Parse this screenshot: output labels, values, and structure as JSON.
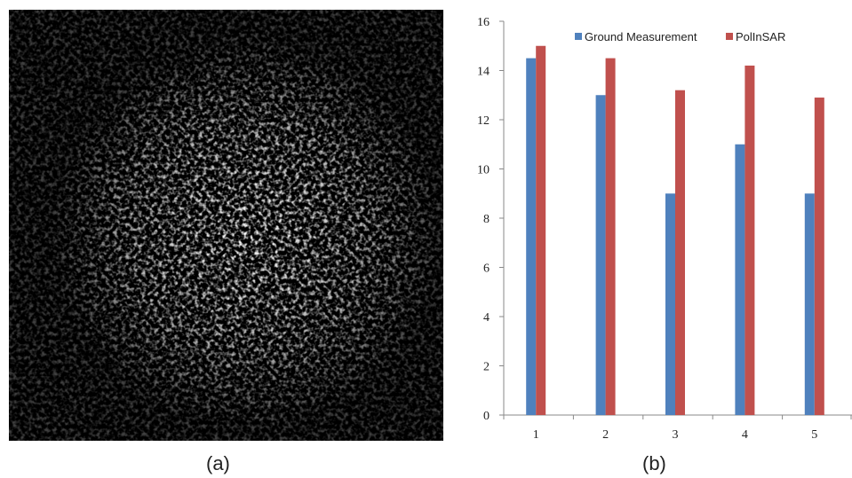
{
  "panels": {
    "a": {
      "caption": "(a)"
    },
    "b": {
      "caption": "(b)"
    }
  },
  "chart_data": {
    "type": "bar",
    "categories": [
      "1",
      "2",
      "3",
      "4",
      "5"
    ],
    "series": [
      {
        "name": "Ground Measurement",
        "values": [
          14.5,
          13,
          9,
          11,
          9
        ],
        "color": "#4f81bd"
      },
      {
        "name": "PolInSAR",
        "values": [
          15,
          14.5,
          13.2,
          14.2,
          12.9
        ],
        "color": "#c0504d"
      }
    ],
    "ylim": [
      0,
      16
    ],
    "yticks": [
      0,
      2,
      4,
      6,
      8,
      10,
      12,
      14,
      16
    ],
    "legend": "top",
    "grid": false
  }
}
